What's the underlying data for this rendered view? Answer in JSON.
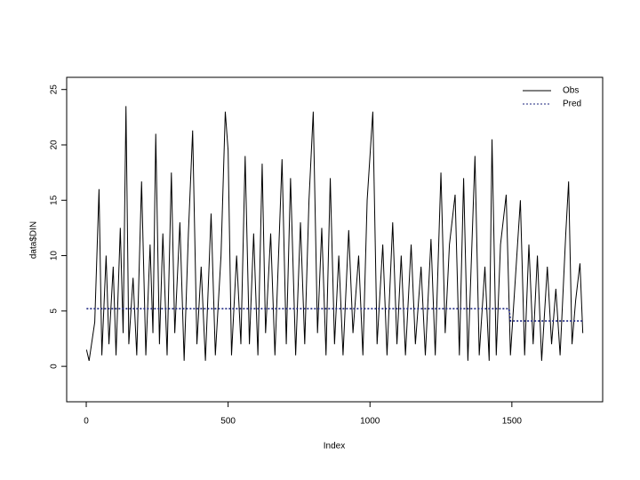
{
  "chart_data": {
    "type": "line",
    "x_label": "Index",
    "y_label": "data$DIN",
    "xlim": [
      -69,
      1820
    ],
    "ylim": [
      -3.2,
      26.1
    ],
    "xticks": [
      0,
      500,
      1000,
      1500
    ],
    "yticks": [
      0,
      5,
      10,
      15,
      20,
      25
    ],
    "legend": "top-right",
    "series": [
      {
        "name": "Obs",
        "color": "#000000",
        "style": "solid",
        "x": [
          1,
          10,
          30,
          45,
          55,
          70,
          80,
          95,
          105,
          120,
          130,
          140,
          150,
          165,
          178,
          195,
          210,
          225,
          235,
          245,
          258,
          270,
          285,
          300,
          312,
          330,
          345,
          360,
          375,
          390,
          405,
          420,
          440,
          455,
          475,
          490,
          500,
          512,
          530,
          545,
          560,
          575,
          590,
          605,
          620,
          632,
          650,
          665,
          690,
          705,
          720,
          738,
          755,
          770,
          785,
          800,
          815,
          830,
          845,
          860,
          875,
          890,
          905,
          925,
          940,
          960,
          975,
          990,
          1010,
          1025,
          1045,
          1060,
          1080,
          1095,
          1110,
          1125,
          1145,
          1160,
          1180,
          1195,
          1215,
          1230,
          1250,
          1265,
          1280,
          1300,
          1315,
          1330,
          1345,
          1370,
          1385,
          1405,
          1420,
          1430,
          1445,
          1460,
          1480,
          1495,
          1515,
          1530,
          1545,
          1560,
          1575,
          1590,
          1605,
          1625,
          1640,
          1655,
          1670,
          1690,
          1700,
          1712,
          1725,
          1740,
          1750
        ],
        "values": [
          1.5,
          0.5,
          4,
          16,
          1,
          10,
          2,
          9,
          1,
          12.5,
          3,
          23.5,
          2,
          8,
          1,
          16.7,
          1,
          11,
          3,
          21,
          2,
          12,
          1,
          17.5,
          3,
          13,
          0.5,
          12,
          21.3,
          2,
          9,
          0.5,
          13.8,
          1,
          10,
          23,
          19.5,
          1,
          10,
          2,
          19,
          2,
          12,
          1,
          18.3,
          3,
          12,
          1,
          18.7,
          2,
          17,
          1,
          13,
          2,
          15,
          23,
          3,
          12.5,
          1,
          17,
          2,
          10,
          1,
          12.3,
          3,
          10,
          1,
          15,
          23,
          2,
          11,
          1,
          13,
          2,
          10,
          1,
          11,
          2,
          9,
          1,
          11.5,
          1,
          17.5,
          3,
          11,
          15.5,
          1,
          17,
          0.5,
          19,
          1,
          9,
          0.5,
          20.5,
          1,
          11,
          15.5,
          1,
          9,
          15,
          1,
          11,
          2,
          10,
          0.5,
          9,
          2,
          7,
          1,
          12,
          16.7,
          2,
          6,
          9.3,
          3
        ]
      },
      {
        "name": "Pred",
        "color": "#1a237e",
        "style": "dotted",
        "x": [
          1,
          1490,
          1495,
          1750
        ],
        "values": [
          5.2,
          5.2,
          4.1,
          4.1
        ]
      }
    ]
  }
}
